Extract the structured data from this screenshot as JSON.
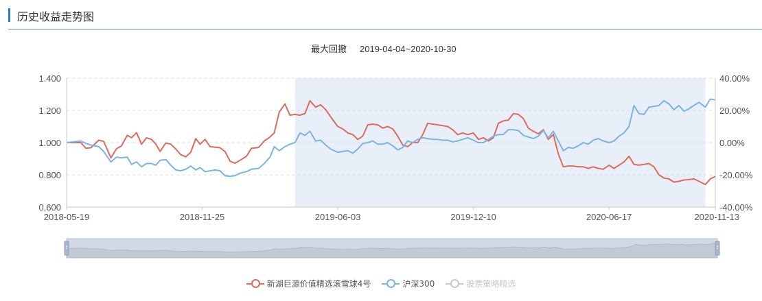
{
  "header": {
    "title": "历史收益走势图"
  },
  "chart_data": {
    "type": "line",
    "subtitle_label": "最大回撤",
    "subtitle_range": "2019-04-04~2020-10-30",
    "x_tick_labels": [
      "2018-05-19",
      "2018-11-25",
      "2019-06-03",
      "2019-12-10",
      "2020-06-17",
      "2020-11-13"
    ],
    "x_range": [
      "2018-05-19",
      "2020-11-13"
    ],
    "y_left": {
      "ticks": [
        "0.600",
        "0.800",
        "1.000",
        "1.200",
        "1.400"
      ],
      "range": [
        0.6,
        1.4
      ]
    },
    "y_right": {
      "ticks": [
        "-40.00%",
        "-20.00%",
        "0.00%",
        "20.00%",
        "40.00%"
      ],
      "range": [
        -40,
        40
      ]
    },
    "drawdown_period": [
      "2019-04-04",
      "2020-10-30"
    ],
    "grid": true,
    "legend_position": "bottom",
    "series": [
      {
        "name": "新湖巨源价值精选滚雪球4号",
        "color": "#e0695c",
        "points": [
          [
            "2018-05-19",
            1.0
          ],
          [
            "2018-05-29",
            1.0
          ],
          [
            "2018-06-08",
            1.0
          ],
          [
            "2018-06-15",
            0.965
          ],
          [
            "2018-06-22",
            0.968
          ],
          [
            "2018-07-03",
            1.015
          ],
          [
            "2018-07-10",
            1.008
          ],
          [
            "2018-07-20",
            0.905
          ],
          [
            "2018-07-28",
            0.962
          ],
          [
            "2018-08-04",
            0.98
          ],
          [
            "2018-08-12",
            1.045
          ],
          [
            "2018-08-18",
            1.03
          ],
          [
            "2018-08-25",
            1.062
          ],
          [
            "2018-09-01",
            0.99
          ],
          [
            "2018-09-08",
            1.03
          ],
          [
            "2018-09-15",
            1.02
          ],
          [
            "2018-09-21",
            0.99
          ],
          [
            "2018-09-27",
            0.945
          ],
          [
            "2018-10-05",
            0.998
          ],
          [
            "2018-10-12",
            0.99
          ],
          [
            "2018-10-19",
            0.96
          ],
          [
            "2018-10-26",
            0.925
          ],
          [
            "2018-11-02",
            0.912
          ],
          [
            "2018-11-09",
            0.94
          ],
          [
            "2018-11-16",
            1.025
          ],
          [
            "2018-11-22",
            0.99
          ],
          [
            "2018-11-29",
            1.02
          ],
          [
            "2018-12-06",
            0.975
          ],
          [
            "2018-12-13",
            0.972
          ],
          [
            "2018-12-20",
            0.968
          ],
          [
            "2018-12-27",
            0.945
          ],
          [
            "2019-01-03",
            0.885
          ],
          [
            "2019-01-10",
            0.872
          ],
          [
            "2019-01-17",
            0.89
          ],
          [
            "2019-01-26",
            0.915
          ],
          [
            "2019-02-02",
            0.965
          ],
          [
            "2019-02-12",
            0.97
          ],
          [
            "2019-02-20",
            1.01
          ],
          [
            "2019-02-28",
            1.035
          ],
          [
            "2019-03-06",
            1.06
          ],
          [
            "2019-03-13",
            1.19
          ],
          [
            "2019-03-21",
            1.24
          ],
          [
            "2019-03-28",
            1.17
          ],
          [
            "2019-04-04",
            1.175
          ],
          [
            "2019-04-11",
            1.17
          ],
          [
            "2019-04-18",
            1.18
          ],
          [
            "2019-04-25",
            1.26
          ],
          [
            "2019-05-03",
            1.22
          ],
          [
            "2019-05-10",
            1.235
          ],
          [
            "2019-05-17",
            1.205
          ],
          [
            "2019-05-24",
            1.16
          ],
          [
            "2019-06-03",
            1.1
          ],
          [
            "2019-06-10",
            1.085
          ],
          [
            "2019-06-17",
            1.06
          ],
          [
            "2019-06-24",
            1.05
          ],
          [
            "2019-07-01",
            1.02
          ],
          [
            "2019-07-08",
            1.04
          ],
          [
            "2019-07-15",
            1.11
          ],
          [
            "2019-07-22",
            1.115
          ],
          [
            "2019-07-29",
            1.11
          ],
          [
            "2019-08-05",
            1.09
          ],
          [
            "2019-08-12",
            1.1
          ],
          [
            "2019-08-19",
            1.085
          ],
          [
            "2019-08-26",
            1.04
          ],
          [
            "2019-09-02",
            0.985
          ],
          [
            "2019-09-09",
            0.975
          ],
          [
            "2019-09-16",
            1.0
          ],
          [
            "2019-09-23",
            1.0
          ],
          [
            "2019-09-30",
            1.05
          ],
          [
            "2019-10-07",
            1.12
          ],
          [
            "2019-10-14",
            1.115
          ],
          [
            "2019-10-21",
            1.11
          ],
          [
            "2019-10-28",
            1.105
          ],
          [
            "2019-11-04",
            1.1
          ],
          [
            "2019-11-11",
            1.08
          ],
          [
            "2019-11-18",
            1.05
          ],
          [
            "2019-11-25",
            1.06
          ],
          [
            "2019-12-02",
            1.05
          ],
          [
            "2019-12-10",
            1.06
          ],
          [
            "2019-12-17",
            1.02
          ],
          [
            "2019-12-24",
            1.03
          ],
          [
            "2019-12-31",
            1.01
          ],
          [
            "2020-01-07",
            1.03
          ],
          [
            "2020-01-14",
            1.12
          ],
          [
            "2020-01-21",
            1.135
          ],
          [
            "2020-01-28",
            1.14
          ],
          [
            "2020-02-04",
            1.18
          ],
          [
            "2020-02-11",
            1.175
          ],
          [
            "2020-02-18",
            1.15
          ],
          [
            "2020-02-25",
            1.09
          ],
          [
            "2020-03-03",
            1.07
          ],
          [
            "2020-03-10",
            1.055
          ],
          [
            "2020-03-17",
            1.08
          ],
          [
            "2020-03-24",
            1.02
          ],
          [
            "2020-03-31",
            1.05
          ],
          [
            "2020-04-07",
            0.93
          ],
          [
            "2020-04-14",
            0.85
          ],
          [
            "2020-04-21",
            0.855
          ],
          [
            "2020-04-28",
            0.855
          ],
          [
            "2020-05-05",
            0.85
          ],
          [
            "2020-05-12",
            0.85
          ],
          [
            "2020-05-19",
            0.84
          ],
          [
            "2020-05-26",
            0.85
          ],
          [
            "2020-06-02",
            0.84
          ],
          [
            "2020-06-09",
            0.835
          ],
          [
            "2020-06-17",
            0.86
          ],
          [
            "2020-06-24",
            0.84
          ],
          [
            "2020-07-01",
            0.86
          ],
          [
            "2020-07-08",
            0.88
          ],
          [
            "2020-07-15",
            0.915
          ],
          [
            "2020-07-22",
            0.865
          ],
          [
            "2020-07-29",
            0.86
          ],
          [
            "2020-08-05",
            0.865
          ],
          [
            "2020-08-12",
            0.87
          ],
          [
            "2020-08-19",
            0.85
          ],
          [
            "2020-08-26",
            0.8
          ],
          [
            "2020-09-02",
            0.78
          ],
          [
            "2020-09-09",
            0.775
          ],
          [
            "2020-09-16",
            0.755
          ],
          [
            "2020-09-23",
            0.76
          ],
          [
            "2020-09-30",
            0.768
          ],
          [
            "2020-10-07",
            0.77
          ],
          [
            "2020-10-14",
            0.775
          ],
          [
            "2020-10-21",
            0.76
          ],
          [
            "2020-10-30",
            0.74
          ],
          [
            "2020-11-06",
            0.775
          ],
          [
            "2020-11-13",
            0.79
          ]
        ]
      },
      {
        "name": "沪深300",
        "color": "#7ab3e8",
        "points": [
          [
            "2018-05-19",
            1.0
          ],
          [
            "2018-05-29",
            1.005
          ],
          [
            "2018-06-08",
            1.01
          ],
          [
            "2018-06-15",
            0.995
          ],
          [
            "2018-06-22",
            0.985
          ],
          [
            "2018-07-03",
            0.975
          ],
          [
            "2018-07-10",
            0.945
          ],
          [
            "2018-07-20",
            0.88
          ],
          [
            "2018-07-28",
            0.91
          ],
          [
            "2018-08-04",
            0.905
          ],
          [
            "2018-08-12",
            0.91
          ],
          [
            "2018-08-18",
            0.865
          ],
          [
            "2018-08-25",
            0.88
          ],
          [
            "2018-09-01",
            0.85
          ],
          [
            "2018-09-08",
            0.87
          ],
          [
            "2018-09-15",
            0.87
          ],
          [
            "2018-09-21",
            0.86
          ],
          [
            "2018-09-27",
            0.89
          ],
          [
            "2018-10-05",
            0.895
          ],
          [
            "2018-10-12",
            0.86
          ],
          [
            "2018-10-19",
            0.83
          ],
          [
            "2018-10-26",
            0.825
          ],
          [
            "2018-11-02",
            0.835
          ],
          [
            "2018-11-09",
            0.855
          ],
          [
            "2018-11-16",
            0.83
          ],
          [
            "2018-11-22",
            0.845
          ],
          [
            "2018-11-29",
            0.82
          ],
          [
            "2018-12-06",
            0.825
          ],
          [
            "2018-12-13",
            0.83
          ],
          [
            "2018-12-20",
            0.825
          ],
          [
            "2018-12-27",
            0.795
          ],
          [
            "2019-01-03",
            0.79
          ],
          [
            "2019-01-10",
            0.795
          ],
          [
            "2019-01-17",
            0.81
          ],
          [
            "2019-01-26",
            0.82
          ],
          [
            "2019-02-02",
            0.835
          ],
          [
            "2019-02-12",
            0.84
          ],
          [
            "2019-02-20",
            0.87
          ],
          [
            "2019-02-28",
            0.91
          ],
          [
            "2019-03-06",
            0.975
          ],
          [
            "2019-03-13",
            0.95
          ],
          [
            "2019-03-21",
            0.975
          ],
          [
            "2019-03-28",
            0.99
          ],
          [
            "2019-04-04",
            1.0
          ],
          [
            "2019-04-11",
            1.06
          ],
          [
            "2019-04-18",
            1.045
          ],
          [
            "2019-04-25",
            1.07
          ],
          [
            "2019-05-03",
            1.01
          ],
          [
            "2019-05-10",
            1.015
          ],
          [
            "2019-05-17",
            0.985
          ],
          [
            "2019-05-24",
            0.96
          ],
          [
            "2019-06-03",
            0.94
          ],
          [
            "2019-06-10",
            0.945
          ],
          [
            "2019-06-17",
            0.95
          ],
          [
            "2019-06-24",
            0.935
          ],
          [
            "2019-07-01",
            0.96
          ],
          [
            "2019-07-08",
            0.995
          ],
          [
            "2019-07-15",
            1.0
          ],
          [
            "2019-07-22",
            1.01
          ],
          [
            "2019-07-29",
            0.99
          ],
          [
            "2019-08-05",
            0.99
          ],
          [
            "2019-08-12",
            1.0
          ],
          [
            "2019-08-19",
            0.98
          ],
          [
            "2019-08-26",
            0.955
          ],
          [
            "2019-09-02",
            0.97
          ],
          [
            "2019-09-09",
            1.01
          ],
          [
            "2019-09-16",
            1.0
          ],
          [
            "2019-09-23",
            1.02
          ],
          [
            "2019-09-30",
            1.03
          ],
          [
            "2019-10-07",
            1.025
          ],
          [
            "2019-10-14",
            1.02
          ],
          [
            "2019-10-21",
            1.02
          ],
          [
            "2019-10-28",
            1.015
          ],
          [
            "2019-11-04",
            1.015
          ],
          [
            "2019-11-11",
            1.005
          ],
          [
            "2019-11-18",
            1.01
          ],
          [
            "2019-11-25",
            1.02
          ],
          [
            "2019-12-02",
            1.03
          ],
          [
            "2019-12-10",
            1.015
          ],
          [
            "2019-12-17",
            1.0
          ],
          [
            "2019-12-24",
            1.0
          ],
          [
            "2019-12-31",
            1.02
          ],
          [
            "2020-01-07",
            1.04
          ],
          [
            "2020-01-14",
            1.05
          ],
          [
            "2020-01-21",
            1.05
          ],
          [
            "2020-01-28",
            1.08
          ],
          [
            "2020-02-04",
            1.08
          ],
          [
            "2020-02-11",
            1.075
          ],
          [
            "2020-02-18",
            1.045
          ],
          [
            "2020-02-25",
            1.035
          ],
          [
            "2020-03-03",
            1.025
          ],
          [
            "2020-03-10",
            1.04
          ],
          [
            "2020-03-17",
            1.075
          ],
          [
            "2020-03-24",
            1.03
          ],
          [
            "2020-03-31",
            1.07
          ],
          [
            "2020-04-07",
            1.01
          ],
          [
            "2020-04-14",
            0.95
          ],
          [
            "2020-04-21",
            0.97
          ],
          [
            "2020-04-28",
            0.965
          ],
          [
            "2020-05-05",
            0.98
          ],
          [
            "2020-05-12",
            1.0
          ],
          [
            "2020-05-19",
            0.99
          ],
          [
            "2020-05-26",
            1.015
          ],
          [
            "2020-06-02",
            1.025
          ],
          [
            "2020-06-09",
            1.01
          ],
          [
            "2020-06-17",
            1.0
          ],
          [
            "2020-06-24",
            1.01
          ],
          [
            "2020-07-01",
            1.04
          ],
          [
            "2020-07-08",
            1.06
          ],
          [
            "2020-07-15",
            1.1
          ],
          [
            "2020-07-22",
            1.23
          ],
          [
            "2020-07-29",
            1.18
          ],
          [
            "2020-08-05",
            1.175
          ],
          [
            "2020-08-12",
            1.22
          ],
          [
            "2020-08-19",
            1.225
          ],
          [
            "2020-08-26",
            1.23
          ],
          [
            "2020-09-02",
            1.26
          ],
          [
            "2020-09-09",
            1.24
          ],
          [
            "2020-09-16",
            1.205
          ],
          [
            "2020-09-23",
            1.23
          ],
          [
            "2020-09-30",
            1.195
          ],
          [
            "2020-10-07",
            1.21
          ],
          [
            "2020-10-14",
            1.23
          ],
          [
            "2020-10-21",
            1.25
          ],
          [
            "2020-10-30",
            1.22
          ],
          [
            "2020-11-06",
            1.27
          ],
          [
            "2020-11-13",
            1.265
          ]
        ]
      },
      {
        "name": "股票策略精选",
        "color": "#c8c8c8",
        "disabled": true,
        "points": []
      }
    ]
  }
}
